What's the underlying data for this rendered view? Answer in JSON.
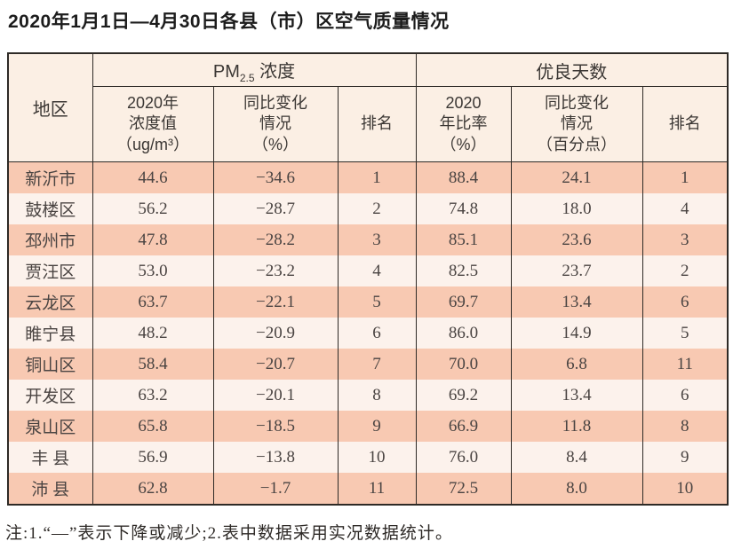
{
  "page": {
    "title": "2020年1月1日—4月30日各县（市）区空气质量情况",
    "note": "注:1.“—”表示下降或减少;2.表中数据采用实况数据统计。"
  },
  "colors": {
    "row_odd_bg": "#f8c9b2",
    "row_even_bg": "#fcf2ec",
    "header_bg": "#fbefe4",
    "border": "#2e2a26",
    "text": "#4a4442"
  },
  "table": {
    "region_header": "地区",
    "group_pm": {
      "prefix": "PM",
      "subscript": "2.5",
      "suffix": " 浓度"
    },
    "group_days": "优良天数",
    "subheaders": [
      "2020年\n浓度值\n（ug/m³）",
      "同比变化\n情况\n（%）",
      "排名",
      "2020\n年比率\n（%）",
      "同比变化\n情况\n（百分点）",
      "排名"
    ],
    "rows": [
      {
        "region": "新沂市",
        "values": [
          "44.6",
          "−34.6",
          "1",
          "88.4",
          "24.1",
          "1"
        ]
      },
      {
        "region": "鼓楼区",
        "values": [
          "56.2",
          "−28.7",
          "2",
          "74.8",
          "18.0",
          "4"
        ]
      },
      {
        "region": "邳州市",
        "values": [
          "47.8",
          "−28.2",
          "3",
          "85.1",
          "23.6",
          "3"
        ]
      },
      {
        "region": "贾汪区",
        "values": [
          "53.0",
          "−23.2",
          "4",
          "82.5",
          "23.7",
          "2"
        ]
      },
      {
        "region": "云龙区",
        "values": [
          "63.7",
          "−22.1",
          "5",
          "69.7",
          "13.4",
          "6"
        ]
      },
      {
        "region": "睢宁县",
        "values": [
          "48.2",
          "−20.9",
          "6",
          "86.0",
          "14.9",
          "5"
        ]
      },
      {
        "region": "铜山区",
        "values": [
          "58.4",
          "−20.7",
          "7",
          "70.0",
          "6.8",
          "11"
        ]
      },
      {
        "region": "开发区",
        "values": [
          "63.2",
          "−20.1",
          "8",
          "69.2",
          "13.4",
          "6"
        ]
      },
      {
        "region": "泉山区",
        "values": [
          "65.8",
          "−18.5",
          "9",
          "66.9",
          "11.8",
          "8"
        ]
      },
      {
        "region": "丰 县",
        "values": [
          "56.9",
          "−13.8",
          "10",
          "76.0",
          "8.4",
          "9"
        ]
      },
      {
        "region": "沛 县",
        "values": [
          "62.8",
          "−1.7",
          "11",
          "72.5",
          "8.0",
          "10"
        ]
      }
    ]
  }
}
